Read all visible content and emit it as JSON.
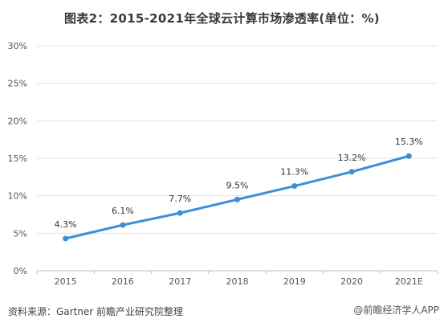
{
  "chart_data": {
    "type": "line",
    "title": "图表2：2015-2021年全球云计算市场渗透率(单位：%)",
    "categories": [
      "2015",
      "2016",
      "2017",
      "2018",
      "2019",
      "2020",
      "2021E"
    ],
    "series": [
      {
        "values": [
          4.3,
          6.1,
          7.7,
          9.5,
          11.3,
          13.2,
          15.3
        ],
        "labels": [
          "4.3%",
          "6.1%",
          "7.7%",
          "9.5%",
          "11.3%",
          "13.2%",
          "15.3%"
        ]
      }
    ],
    "yticks": [
      "0%",
      "5%",
      "10%",
      "15%",
      "20%",
      "25%",
      "30%"
    ],
    "ylim": [
      0,
      30
    ],
    "xlabel": "",
    "ylabel": "",
    "grid": true,
    "line_color": "#3d8ed6",
    "grid_color": "#e3e3e3"
  },
  "footer": {
    "source": "资料来源：Gartner 前瞻产业研究院整理"
  },
  "credit": "@前瞻经济学人APP"
}
